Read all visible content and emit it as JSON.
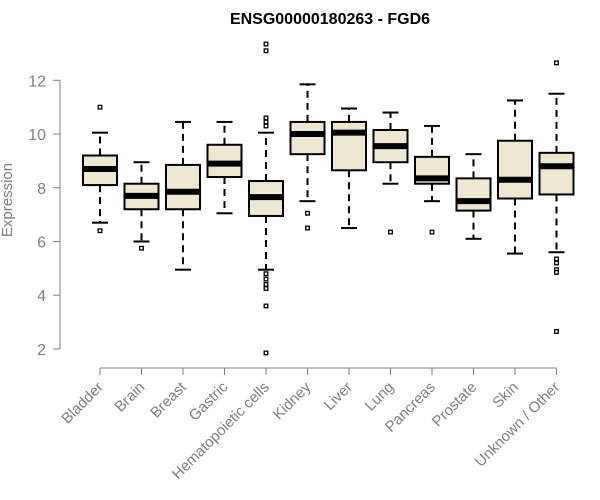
{
  "chart_data": {
    "type": "box",
    "title": "ENSG00000180263 - FGD6",
    "xlabel": "",
    "ylabel": "Expression",
    "ylim": [
      1.7,
      13.5
    ],
    "yticks": [
      2,
      4,
      6,
      8,
      10,
      12
    ],
    "grid": false,
    "colors": {
      "box_fill": "#EEE8D2",
      "stroke": "#000000",
      "axis": "#808080"
    },
    "categories": [
      "Bladder",
      "Brain",
      "Breast",
      "Gastric",
      "Hematopoietic cells",
      "Kidney",
      "Liver",
      "Lung",
      "Pancreas",
      "Prostate",
      "Skin",
      "Unknown / Other"
    ],
    "boxes": [
      {
        "category": "Bladder",
        "whisker_low": 6.7,
        "q1": 8.1,
        "median": 8.7,
        "q3": 9.2,
        "whisker_high": 10.05,
        "outliers": [
          11.0,
          6.4
        ]
      },
      {
        "category": "Brain",
        "whisker_low": 6.0,
        "q1": 7.2,
        "median": 7.7,
        "q3": 8.15,
        "whisker_high": 8.95,
        "outliers": [
          5.75
        ]
      },
      {
        "category": "Breast",
        "whisker_low": 4.95,
        "q1": 7.2,
        "median": 7.85,
        "q3": 8.85,
        "whisker_high": 10.45,
        "outliers": []
      },
      {
        "category": "Gastric",
        "whisker_low": 7.05,
        "q1": 8.4,
        "median": 8.9,
        "q3": 9.6,
        "whisker_high": 10.45,
        "outliers": []
      },
      {
        "category": "Hematopoietic cells",
        "whisker_low": 4.95,
        "q1": 6.95,
        "median": 7.65,
        "q3": 8.25,
        "whisker_high": 10.05,
        "outliers": [
          13.35,
          13.1,
          10.6,
          10.45,
          10.3,
          4.8,
          4.6,
          4.4,
          4.25,
          3.6,
          1.85
        ]
      },
      {
        "category": "Kidney",
        "whisker_low": 7.5,
        "q1": 9.25,
        "median": 10.0,
        "q3": 10.45,
        "whisker_high": 11.85,
        "outliers": [
          7.05,
          6.5
        ]
      },
      {
        "category": "Liver",
        "whisker_low": 6.5,
        "q1": 8.65,
        "median": 10.05,
        "q3": 10.45,
        "whisker_high": 10.95,
        "outliers": []
      },
      {
        "category": "Lung",
        "whisker_low": 8.15,
        "q1": 8.95,
        "median": 9.55,
        "q3": 10.15,
        "whisker_high": 10.8,
        "outliers": [
          6.35
        ]
      },
      {
        "category": "Pancreas",
        "whisker_low": 7.5,
        "q1": 8.15,
        "median": 8.35,
        "q3": 9.15,
        "whisker_high": 10.3,
        "outliers": [
          6.35
        ]
      },
      {
        "category": "Prostate",
        "whisker_low": 6.1,
        "q1": 7.15,
        "median": 7.5,
        "q3": 8.35,
        "whisker_high": 9.25,
        "outliers": []
      },
      {
        "category": "Skin",
        "whisker_low": 5.55,
        "q1": 7.6,
        "median": 8.3,
        "q3": 9.75,
        "whisker_high": 11.25,
        "outliers": []
      },
      {
        "category": "Unknown / Other",
        "whisker_low": 5.6,
        "q1": 7.75,
        "median": 8.8,
        "q3": 9.3,
        "whisker_high": 11.5,
        "outliers": [
          12.65,
          5.35,
          5.2,
          4.95,
          4.85,
          2.65
        ]
      }
    ]
  }
}
